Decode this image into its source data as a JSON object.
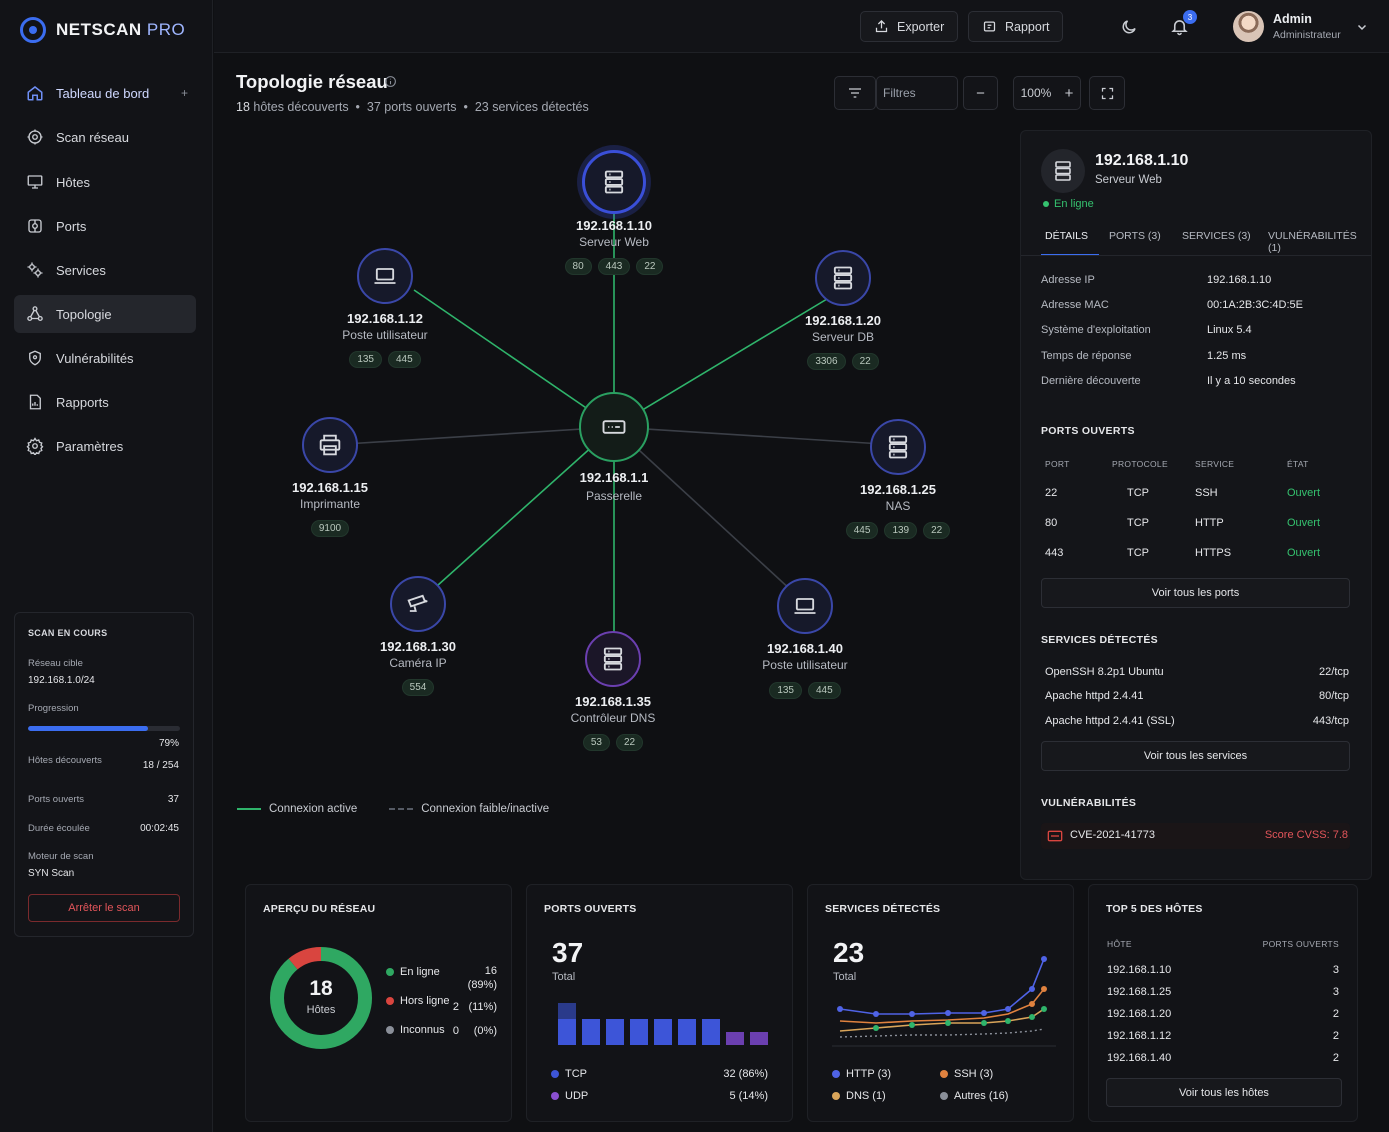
{
  "app": {
    "brand_main": "NETSCAN",
    "brand_sub": " PRO"
  },
  "nav": {
    "items": [
      {
        "label": "Tableau de bord",
        "icon": "dashboard-icon"
      },
      {
        "label": "Scan réseau",
        "icon": "scan-icon"
      },
      {
        "label": "Hôtes",
        "icon": "monitor-icon"
      },
      {
        "label": "Ports",
        "icon": "ports-icon"
      },
      {
        "label": "Services",
        "icon": "services-icon"
      },
      {
        "label": "Topologie",
        "icon": "topology-icon"
      },
      {
        "label": "Vulnérabilités",
        "icon": "shield-icon"
      },
      {
        "label": "Rapports",
        "icon": "report-icon"
      },
      {
        "label": "Paramètres",
        "icon": "gear-icon"
      }
    ],
    "plus": "+"
  },
  "scan": {
    "title": "SCAN EN COURS",
    "target_label": "Réseau cible",
    "target_value": "192.168.1.0/24",
    "progress_label": "Progression",
    "progress_pct": 79,
    "progress_text": "79%",
    "hosts_label": "Hôtes découverts",
    "hosts_value": "18 / 254",
    "ports_label": "Ports ouverts",
    "ports_value": "37",
    "duration_label": "Durée écoulée",
    "duration_value": "00:02:45",
    "engine_label": "Moteur de scan",
    "engine_value": "SYN Scan",
    "stop_label": "Arrêter le scan"
  },
  "topbar": {
    "export_label": "Exporter",
    "report_label": "Rapport",
    "notif_count": "3",
    "user_name": "Admin",
    "user_role": "Administrateur"
  },
  "page": {
    "title": "Topologie réseau",
    "hosts_count": "18",
    "hosts_text": " hôtes découverts",
    "ports_text": "37 ports ouverts",
    "services_text": "23 services détectés",
    "sep": "•",
    "filter_label": "Filtres",
    "zoom": "100%",
    "zoom_minus": "−",
    "zoom_plus": "+"
  },
  "topology": {
    "nodes": [
      {
        "ip": "192.168.1.1",
        "role": "Passerelle",
        "icon": "router-icon",
        "ports": []
      },
      {
        "ip": "192.168.1.10",
        "role": "Serveur Web",
        "icon": "server-icon",
        "ports": [
          "80",
          "443",
          "22"
        ]
      },
      {
        "ip": "192.168.1.12",
        "role": "Poste utilisateur",
        "icon": "laptop-icon",
        "ports": [
          "135",
          "445"
        ]
      },
      {
        "ip": "192.168.1.20",
        "role": "Serveur DB",
        "icon": "server-icon",
        "ports": [
          "3306",
          "22"
        ]
      },
      {
        "ip": "192.168.1.15",
        "role": "Imprimante",
        "icon": "printer-icon",
        "ports": [
          "9100"
        ]
      },
      {
        "ip": "192.168.1.25",
        "role": "NAS",
        "icon": "server-icon",
        "ports": [
          "445",
          "139",
          "22"
        ]
      },
      {
        "ip": "192.168.1.30",
        "role": "Caméra IP",
        "icon": "camera-icon",
        "ports": [
          "554"
        ]
      },
      {
        "ip": "192.168.1.35",
        "role": "Contrôleur DNS",
        "icon": "server-icon",
        "ports": [
          "53",
          "22"
        ]
      },
      {
        "ip": "192.168.1.40",
        "role": "Poste utilisateur",
        "icon": "laptop-icon",
        "ports": [
          "135",
          "445"
        ]
      }
    ],
    "legend_active": "Connexion active",
    "legend_inactive": "Connexion faible/inactive"
  },
  "detail": {
    "ip": "192.168.1.10",
    "role": "Serveur Web",
    "status": "En ligne",
    "tabs": [
      "DÉTAILS",
      "PORTS (3)",
      "SERVICES (3)",
      "VULNÉRABILITÉS (1)"
    ],
    "fields": [
      {
        "k": "Adresse IP",
        "v": "192.168.1.10"
      },
      {
        "k": "Adresse MAC",
        "v": "00:1A:2B:3C:4D:5E"
      },
      {
        "k": "Système d'exploitation",
        "v": "Linux 5.4"
      },
      {
        "k": "Temps de réponse",
        "v": "1.25 ms"
      },
      {
        "k": "Dernière découverte",
        "v": "Il y a 10 secondes"
      }
    ],
    "ports_title": "PORTS OUVERTS",
    "ports_headers": [
      "PORT",
      "PROTOCOLE",
      "SERVICE",
      "ÉTAT"
    ],
    "ports": [
      {
        "port": "22",
        "proto": "TCP",
        "service": "SSH",
        "state": "Ouvert"
      },
      {
        "port": "80",
        "proto": "TCP",
        "service": "HTTP",
        "state": "Ouvert"
      },
      {
        "port": "443",
        "proto": "TCP",
        "service": "HTTPS",
        "state": "Ouvert"
      }
    ],
    "ports_btn": "Voir tous les ports",
    "services_title": "SERVICES DÉTECTÉS",
    "services": [
      {
        "name": "OpenSSH 8.2p1 Ubuntu",
        "port": "22/tcp"
      },
      {
        "name": "Apache httpd 2.4.41",
        "port": "80/tcp"
      },
      {
        "name": "Apache httpd 2.4.41 (SSL)",
        "port": "443/tcp"
      }
    ],
    "services_btn": "Voir tous les services",
    "vuln_title": "VULNÉRABILITÉS",
    "vuln_id": "CVE-2021-41773",
    "vuln_score": "Score CVSS: 7.8"
  },
  "overview": {
    "title": "APERÇU DU RÉSEAU",
    "total": "18",
    "total_label": "Hôtes",
    "items": [
      {
        "label": "En ligne",
        "count": "16",
        "pct": "(89%)",
        "color": "#2fa862",
        "value": 16
      },
      {
        "label": "Hors ligne",
        "count": "2",
        "pct": "(11%)",
        "color": "#d9453f",
        "value": 2
      },
      {
        "label": "Inconnus",
        "count": "0",
        "pct": "(0%)",
        "color": "#8a8f99",
        "value": 0
      }
    ]
  },
  "ports_card": {
    "title": "PORTS OUVERTS",
    "total": "37",
    "total_label": "Total",
    "tcp_label": "TCP",
    "tcp_value": "32 (86%)",
    "udp_label": "UDP",
    "udp_value": "5 (14%)"
  },
  "services_card": {
    "title": "SERVICES DÉTECTÉS",
    "total": "23",
    "total_label": "Total",
    "legend": [
      {
        "label": "HTTP (3)",
        "color": "#4f63e6"
      },
      {
        "label": "SSH (3)",
        "color": "#e0823f"
      },
      {
        "label": "DNS (1)",
        "color": "#d9a55a"
      },
      {
        "label": "Autres (16)",
        "color": "#8a8f99"
      }
    ]
  },
  "top_hosts": {
    "title": "TOP 5 DES HÔTES",
    "col_host": "HÔTE",
    "col_ports": "PORTS OUVERTS",
    "rows": [
      {
        "host": "192.168.1.10",
        "ports": "3"
      },
      {
        "host": "192.168.1.25",
        "ports": "3"
      },
      {
        "host": "192.168.1.20",
        "ports": "2"
      },
      {
        "host": "192.168.1.12",
        "ports": "2"
      },
      {
        "host": "192.168.1.40",
        "ports": "2"
      }
    ],
    "btn": "Voir tous les hôtes"
  }
}
